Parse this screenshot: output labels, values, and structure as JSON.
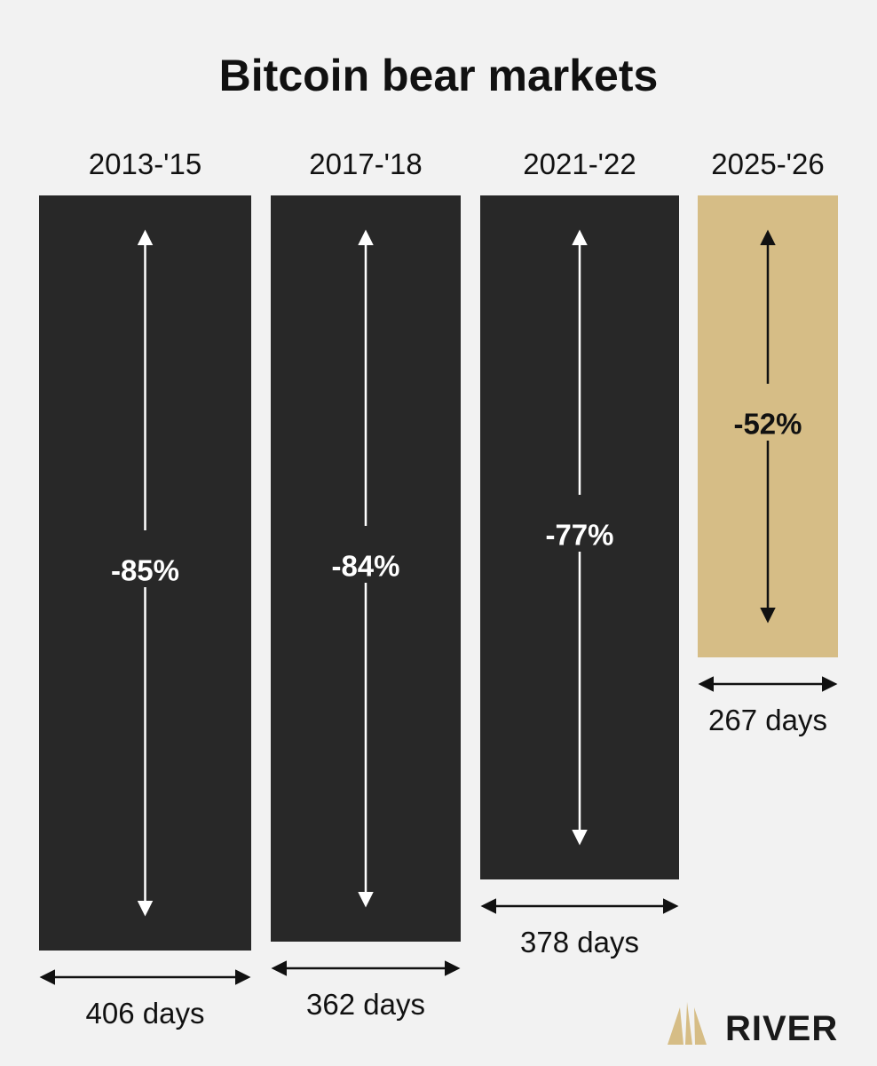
{
  "chart_data": {
    "type": "bar",
    "title": "Bitcoin bear markets",
    "categories": [
      "2013-'15",
      "2017-'18",
      "2021-'22",
      "2025-'26"
    ],
    "drawdown_labels": [
      "-85%",
      "-84%",
      "-77%",
      "-52%"
    ],
    "drawdown_percent": [
      -85,
      -84,
      -77,
      -52
    ],
    "duration_labels": [
      "406 days",
      "362 days",
      "378 days",
      "267 days"
    ],
    "duration_days": [
      406,
      362,
      378,
      267
    ],
    "highlight_index": 3,
    "colors": {
      "past": "#282828",
      "current": "#d6bd86",
      "past_text": "#ffffff",
      "current_text": "#111111",
      "background": "#f2f2f2"
    }
  },
  "brand": {
    "name": "RIVER",
    "logo_color": "#d6bd86",
    "logo_icon": "river-logo-icon"
  }
}
